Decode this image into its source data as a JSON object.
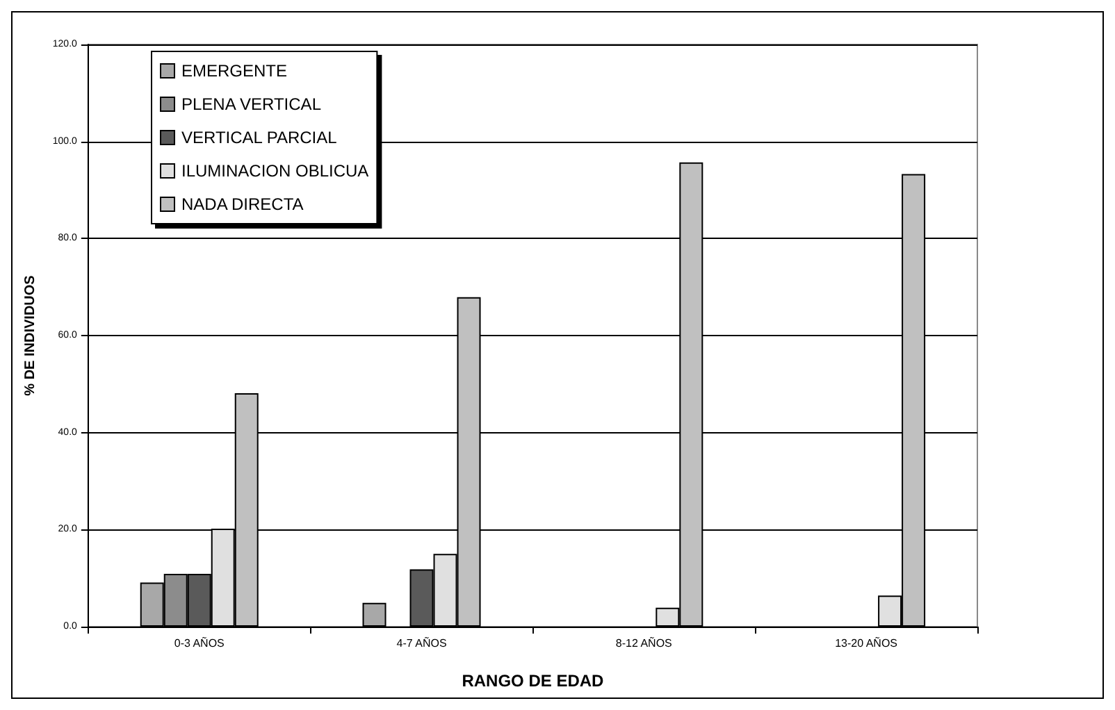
{
  "chart_data": {
    "type": "bar",
    "xlabel": "RANGO DE EDAD",
    "ylabel": "% DE INDIVIDUOS",
    "categories": [
      "0-3 AÑOS",
      "4-7 AÑOS",
      "8-12 AÑOS",
      "13-20 AÑOS"
    ],
    "series": [
      {
        "name": "EMERGENTE",
        "color": "#a8a8a8",
        "values": [
          9.1,
          4.9,
          null,
          null
        ]
      },
      {
        "name": "PLENA VERTICAL",
        "color": "#8c8c8c",
        "values": [
          10.9,
          null,
          null,
          null
        ]
      },
      {
        "name": "VERTICAL PARCIAL",
        "color": "#5a5a5a",
        "values": [
          10.9,
          11.8,
          null,
          null
        ]
      },
      {
        "name": "ILUMINACION OBLICUA",
        "color": "#e0e0e0",
        "values": [
          20.2,
          15.0,
          3.9,
          6.4
        ]
      },
      {
        "name": "NADA DIRECTA",
        "color": "#c0c0c0",
        "values": [
          48.1,
          67.9,
          95.7,
          93.3
        ]
      }
    ],
    "ylim": [
      0,
      120
    ],
    "yticks": [
      {
        "value": 0,
        "label": "0.0"
      },
      {
        "value": 20,
        "label": "20.0"
      },
      {
        "value": 40,
        "label": "40.0"
      },
      {
        "value": 60,
        "label": "60.0"
      },
      {
        "value": 80,
        "label": "80.0"
      },
      {
        "value": 100,
        "label": "100.0"
      },
      {
        "value": 120,
        "label": "120.0"
      }
    ],
    "grid": "y",
    "legend": "top left"
  }
}
